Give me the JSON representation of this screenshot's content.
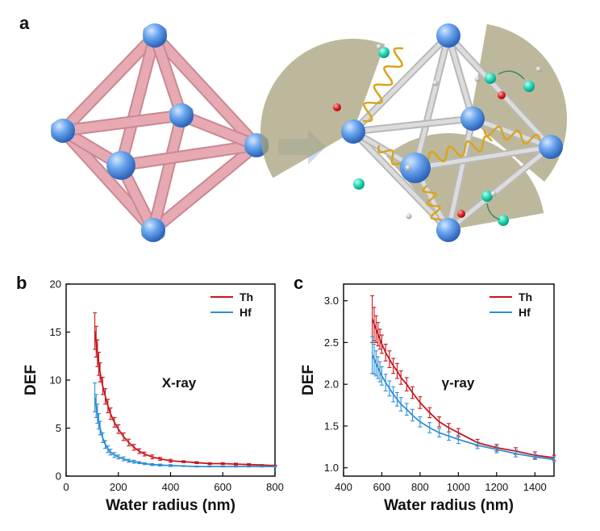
{
  "figure": {
    "panel_labels": [
      "a",
      "b",
      "c"
    ]
  },
  "colors": {
    "th": "#c8161d",
    "hf": "#2e8fd6",
    "node": "#5b9ee8",
    "strut": "#e7aab3",
    "sector": "#a7a079",
    "arrow": "#bcd4ea"
  },
  "schematic": {
    "left_icon": "mof-octahedron-illustration",
    "arrow_icon": "right-arrow-icon",
    "right_icon": "energy-transfer-radiolysis-illustration"
  },
  "chart_data": [
    {
      "type": "line",
      "panel": "b",
      "title": "",
      "annotation": "X-ray",
      "xlabel": "Water radius (nm)",
      "ylabel": "DEF",
      "xlim": [
        0,
        800
      ],
      "ylim": [
        0,
        20
      ],
      "xticks": [
        "0",
        "200",
        "400",
        "600",
        "800"
      ],
      "yticks": [
        "0",
        "5",
        "10",
        "15",
        "20"
      ],
      "legend_position": "top-right",
      "series": [
        {
          "name": "Th",
          "color": "#c8161d",
          "x": [
            110,
            115,
            120,
            125,
            130,
            140,
            150,
            160,
            170,
            185,
            200,
            220,
            240,
            260,
            280,
            300,
            330,
            360,
            400,
            450,
            500,
            550,
            600,
            650,
            700,
            750,
            800
          ],
          "y": [
            15.1,
            14.0,
            12.8,
            11.7,
            10.8,
            9.4,
            8.3,
            7.3,
            6.5,
            5.6,
            4.9,
            4.1,
            3.5,
            3.0,
            2.6,
            2.3,
            2.0,
            1.8,
            1.6,
            1.5,
            1.4,
            1.3,
            1.3,
            1.25,
            1.2,
            1.15,
            1.1
          ],
          "err": [
            1.9,
            1.6,
            1.4,
            1.2,
            1.0,
            0.9,
            0.8,
            0.7,
            0.6,
            0.5,
            0.45,
            0.4,
            0.35,
            0.3,
            0.25,
            0.2,
            0.2,
            0.15,
            0.15,
            0.1,
            0.1,
            0.1,
            0.1,
            0.1,
            0.1,
            0.05,
            0.05
          ]
        },
        {
          "name": "Hf",
          "color": "#2e8fd6",
          "x": [
            110,
            115,
            120,
            125,
            130,
            140,
            150,
            160,
            170,
            185,
            200,
            220,
            240,
            260,
            280,
            300,
            330,
            360,
            400,
            450,
            500,
            550,
            600,
            650,
            700,
            750,
            800
          ],
          "y": [
            8.2,
            7.3,
            6.5,
            5.7,
            5.0,
            4.0,
            3.3,
            2.8,
            2.5,
            2.2,
            2.0,
            1.8,
            1.6,
            1.5,
            1.4,
            1.3,
            1.2,
            1.15,
            1.1,
            1.05,
            1.0,
            1.0,
            1.0,
            1.0,
            1.0,
            1.0,
            1.0
          ],
          "err": [
            1.5,
            1.2,
            1.0,
            0.8,
            0.7,
            0.5,
            0.4,
            0.35,
            0.3,
            0.25,
            0.2,
            0.2,
            0.15,
            0.15,
            0.1,
            0.1,
            0.1,
            0.1,
            0.1,
            0.05,
            0.05,
            0.05,
            0.05,
            0.05,
            0.05,
            0.05,
            0.05
          ]
        }
      ]
    },
    {
      "type": "line",
      "panel": "c",
      "title": "",
      "annotation": "γ-ray",
      "xlabel": "Water radius (nm)",
      "ylabel": "DEF",
      "xlim": [
        400,
        1500
      ],
      "ylim": [
        0.9,
        3.2
      ],
      "xticks": [
        "400",
        "600",
        "800",
        "1000",
        "1200",
        "1400"
      ],
      "yticks": [
        "1.0",
        "1.5",
        "2.0",
        "2.5",
        "3.0"
      ],
      "legend_position": "top-right",
      "series": [
        {
          "name": "Th",
          "color": "#c8161d",
          "x": [
            550,
            560,
            570,
            580,
            590,
            600,
            620,
            640,
            660,
            680,
            700,
            730,
            760,
            800,
            850,
            900,
            950,
            1000,
            1100,
            1200,
            1300,
            1400,
            1500
          ],
          "y": [
            2.78,
            2.72,
            2.66,
            2.6,
            2.54,
            2.48,
            2.38,
            2.3,
            2.22,
            2.16,
            2.08,
            2.0,
            1.9,
            1.78,
            1.66,
            1.55,
            1.48,
            1.42,
            1.3,
            1.24,
            1.2,
            1.15,
            1.12
          ],
          "err": [
            0.28,
            0.2,
            0.16,
            0.14,
            0.12,
            0.11,
            0.1,
            0.1,
            0.09,
            0.09,
            0.08,
            0.08,
            0.07,
            0.07,
            0.06,
            0.06,
            0.05,
            0.05,
            0.04,
            0.04,
            0.04,
            0.04,
            0.03
          ]
        },
        {
          "name": "Hf",
          "color": "#2e8fd6",
          "x": [
            550,
            560,
            570,
            580,
            590,
            600,
            620,
            640,
            660,
            680,
            700,
            730,
            760,
            800,
            850,
            900,
            950,
            1000,
            1100,
            1200,
            1300,
            1400,
            1500
          ],
          "y": [
            2.35,
            2.3,
            2.25,
            2.2,
            2.15,
            2.1,
            2.02,
            1.95,
            1.88,
            1.82,
            1.76,
            1.7,
            1.63,
            1.55,
            1.48,
            1.42,
            1.38,
            1.34,
            1.27,
            1.22,
            1.17,
            1.13,
            1.1
          ],
          "err": [
            0.22,
            0.18,
            0.15,
            0.13,
            0.12,
            0.11,
            0.1,
            0.09,
            0.09,
            0.08,
            0.08,
            0.07,
            0.07,
            0.06,
            0.06,
            0.05,
            0.05,
            0.05,
            0.04,
            0.04,
            0.04,
            0.03,
            0.03
          ]
        }
      ]
    }
  ]
}
